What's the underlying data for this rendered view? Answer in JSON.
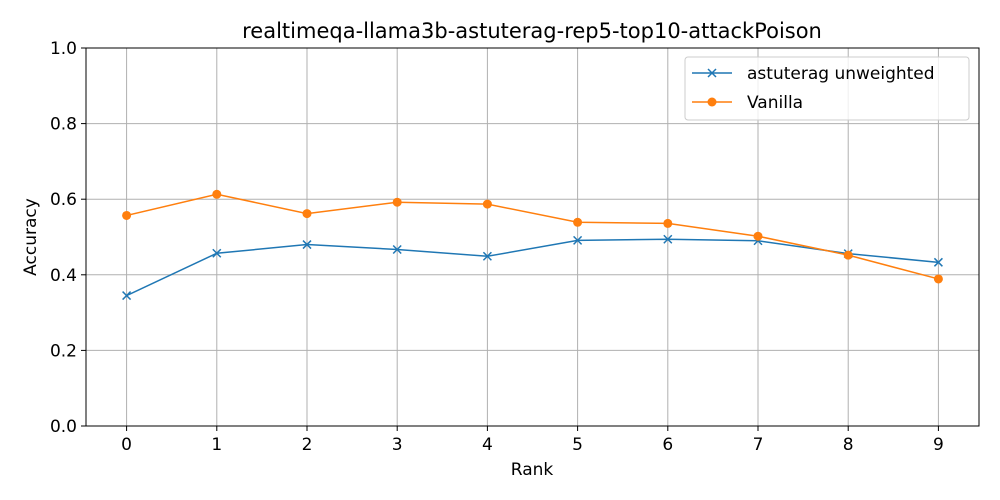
{
  "chart_data": {
    "type": "line",
    "title": "realtimeqa-llama3b-astuterag-rep5-top10-attackPoison",
    "xlabel": "Rank",
    "ylabel": "Accuracy",
    "x": [
      0,
      1,
      2,
      3,
      4,
      5,
      6,
      7,
      8,
      9
    ],
    "xlim": [
      -0.45,
      9.45
    ],
    "ylim": [
      0.0,
      1.0
    ],
    "yticks": [
      0.0,
      0.2,
      0.4,
      0.6,
      0.8,
      1.0
    ],
    "ytick_labels": [
      "0.0",
      "0.2",
      "0.4",
      "0.6",
      "0.8",
      "1.0"
    ],
    "xtick_labels": [
      "0",
      "1",
      "2",
      "3",
      "4",
      "5",
      "6",
      "7",
      "8",
      "9"
    ],
    "grid": true,
    "legend": "top-right",
    "series": [
      {
        "name": "astuterag unweighted",
        "color": "#1f77b4",
        "marker": "x",
        "values": [
          0.345,
          0.457,
          0.48,
          0.467,
          0.449,
          0.491,
          0.494,
          0.49,
          0.456,
          0.433
        ]
      },
      {
        "name": "Vanilla",
        "color": "#ff7f0e",
        "marker": "circle",
        "values": [
          0.557,
          0.613,
          0.562,
          0.592,
          0.587,
          0.539,
          0.536,
          0.502,
          0.452,
          0.389
        ]
      }
    ]
  }
}
